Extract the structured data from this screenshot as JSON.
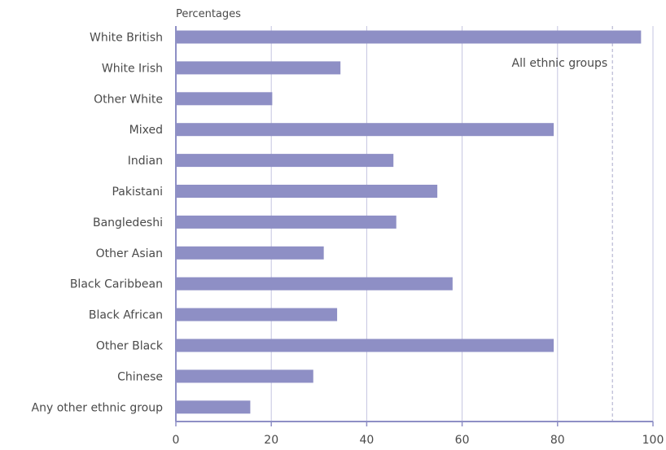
{
  "chart_data": {
    "type": "bar",
    "orientation": "horizontal",
    "unit_label": "Percentages",
    "categories": [
      "White British",
      "White Irish",
      "Other White",
      "Mixed",
      "Indian",
      "Pakistani",
      "Bangledeshi",
      "Other Asian",
      "Black Caribbean",
      "Black African",
      "Other Black",
      "Chinese",
      "Any other ethnic group"
    ],
    "values": [
      97.5,
      34.5,
      20.2,
      79.2,
      45.6,
      54.8,
      46.2,
      31.0,
      58.0,
      33.8,
      79.2,
      28.8,
      15.6
    ],
    "xlim": [
      0,
      100
    ],
    "xticks": [
      "0",
      "20",
      "40",
      "60",
      "80",
      "100"
    ],
    "xtick_values": [
      0,
      20,
      40,
      60,
      80,
      100
    ],
    "reference_line": {
      "value": 91.5,
      "label": "All ethnic groups"
    },
    "grid": "vertical",
    "colors": {
      "bar": "#8e8fc5",
      "grid": "#c4c4e0",
      "axis": "#8e8fc5",
      "reference": "#a9aacb"
    }
  }
}
